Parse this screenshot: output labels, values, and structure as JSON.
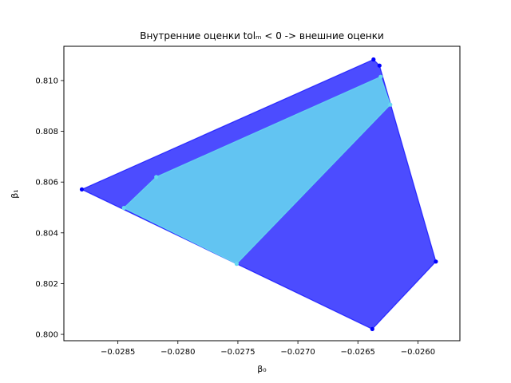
{
  "chart_data": {
    "type": "area",
    "title": "Внутренние оценки tolₘ < 0 -> внешние оценки",
    "xlabel": "β₀",
    "ylabel": "β₁",
    "xlim": [
      -0.02895,
      -0.02565
    ],
    "ylim": [
      0.79975,
      0.81135
    ],
    "x_ticks": [
      -0.0285,
      -0.028,
      -0.0275,
      -0.027,
      -0.0265,
      -0.026
    ],
    "x_tick_labels": [
      "−0.0285",
      "−0.0280",
      "−0.0275",
      "−0.0270",
      "−0.0265",
      "−0.0260"
    ],
    "y_ticks": [
      0.8,
      0.802,
      0.804,
      0.806,
      0.808,
      0.81
    ],
    "y_tick_labels": [
      "0.800",
      "0.802",
      "0.804",
      "0.806",
      "0.808",
      "0.810"
    ],
    "grid": false,
    "series": [
      {
        "color": "#0000ff",
        "fill_opacity": 0.7,
        "points": [
          [
            -0.0288,
            0.80571
          ],
          [
            -0.02637,
            0.81083
          ],
          [
            -0.02632,
            0.81059
          ],
          [
            -0.02585,
            0.80287
          ],
          [
            -0.02638,
            0.80021
          ]
        ]
      },
      {
        "color": "#66d9f0",
        "fill_opacity": 0.85,
        "points": [
          [
            -0.02818,
            0.8062
          ],
          [
            -0.02631,
            0.81015
          ],
          [
            -0.02623,
            0.80905
          ],
          [
            -0.02751,
            0.80278
          ],
          [
            -0.02845,
            0.80498
          ]
        ]
      }
    ]
  }
}
